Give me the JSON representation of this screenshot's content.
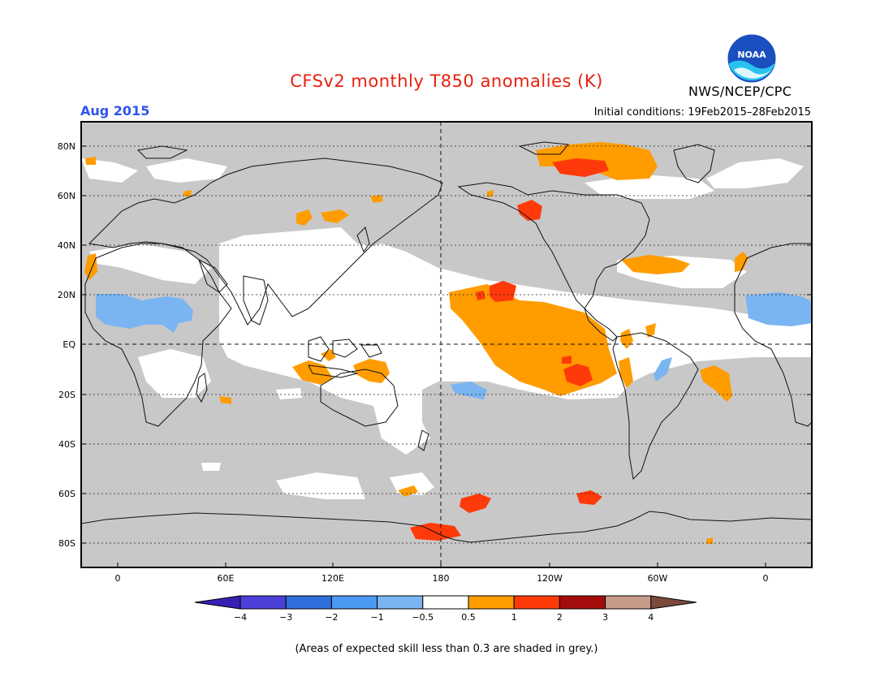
{
  "title": "CFSv2 monthly T850 anomalies (K)",
  "month_label": "Aug 2015",
  "initial_conditions": "Initial conditions: 19Feb2015–28Feb2015",
  "agency": "NWS/NCEP/CPC",
  "logo_text": "NOAA",
  "note": "(Areas of expected skill less than 0.3 are shaded in grey.)",
  "colors": {
    "title": "#e8200f",
    "month": "#2f55e8",
    "skill_grey": "#c8c8c8",
    "ocean_white": "#ffffff"
  },
  "map": {
    "lat_labels": [
      "80N",
      "60N",
      "40N",
      "20N",
      "EQ",
      "20S",
      "40S",
      "60S",
      "80S"
    ],
    "lon_labels": [
      "0",
      "60E",
      "120E",
      "180",
      "120W",
      "60W",
      "0"
    ]
  },
  "colorbar": {
    "labels": [
      "−4",
      "−3",
      "−2",
      "−1",
      "−0.5",
      "0.5",
      "1",
      "2",
      "3",
      "4"
    ],
    "colors": [
      "#3a1fb5",
      "#4b40d8",
      "#2f6fdc",
      "#4a99f2",
      "#7ab5f2",
      "#ffffff",
      "#ff9c00",
      "#ff3a0a",
      "#a50d0d",
      "#c89b88",
      "#7a4a3c"
    ]
  }
}
